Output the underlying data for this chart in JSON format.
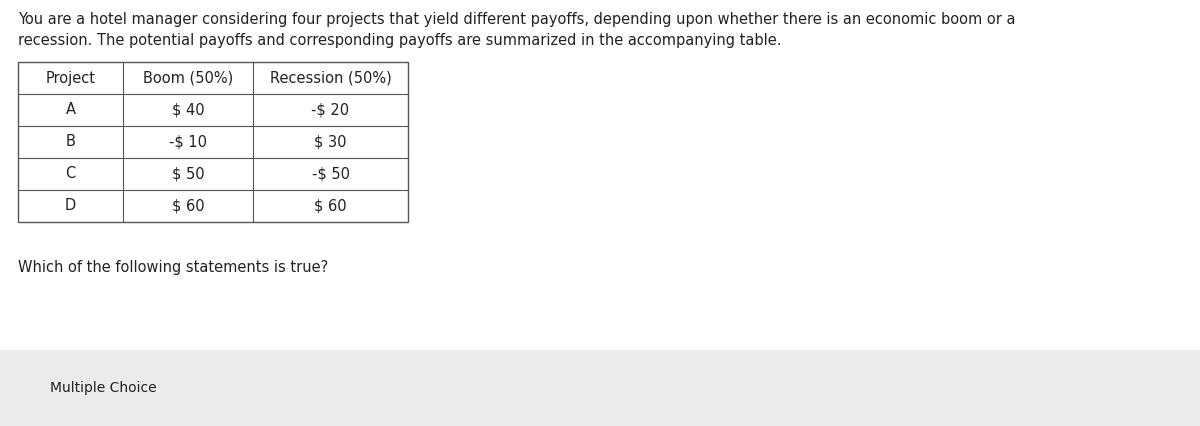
{
  "intro_text": "You are a hotel manager considering four projects that yield different payoffs, depending upon whether there is an economic boom or a\nrecession. The potential payoffs and corresponding payoffs are summarized in the accompanying table.",
  "table_headers": [
    "Project",
    "Boom (50%)",
    "Recession (50%)"
  ],
  "table_rows": [
    [
      "A",
      "$ 40",
      "-$ 20"
    ],
    [
      "B",
      "-$ 10",
      "$ 30"
    ],
    [
      "C",
      "$ 50",
      "-$ 50"
    ],
    [
      "D",
      "$ 60",
      "$ 60"
    ]
  ],
  "question_text": "Which of the following statements is true?",
  "footer_text": "Multiple Choice",
  "bg_color": "#ffffff",
  "table_border_color": "#555555",
  "footer_bg_color": "#ebebeb",
  "text_color": "#222222",
  "font_size_intro": 10.5,
  "font_size_table": 10.5,
  "font_size_question": 10.5,
  "font_size_footer": 10.0
}
